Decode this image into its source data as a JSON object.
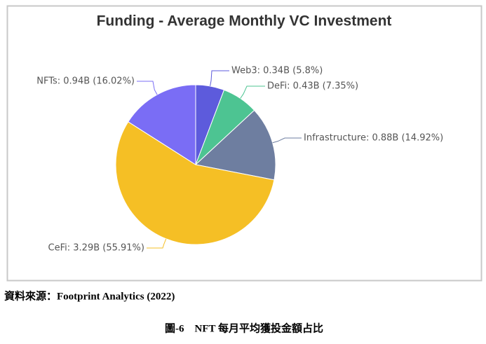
{
  "chart_data": {
    "type": "pie",
    "title": "Funding - Average Monthly VC Investment",
    "values": [
      0.34,
      0.43,
      0.88,
      3.29,
      0.94
    ],
    "value_labels": [
      "Web3: 0.34B (5.8%)",
      "DeFi: 0.43B (7.35%)",
      "Infrastructure: 0.88B (14.92%)",
      "CeFi: 3.29B (55.91%)",
      "NFTs: 0.94B (16.02%)"
    ],
    "colors": [
      "#5d5bdc",
      "#4dc492",
      "#6e7ea0",
      "#f5bf25",
      "#7a6df5"
    ]
  },
  "source": "資料來源：Footprint Analytics (2022)",
  "caption": "圖-6　NFT 每月平均獲投金額占比"
}
